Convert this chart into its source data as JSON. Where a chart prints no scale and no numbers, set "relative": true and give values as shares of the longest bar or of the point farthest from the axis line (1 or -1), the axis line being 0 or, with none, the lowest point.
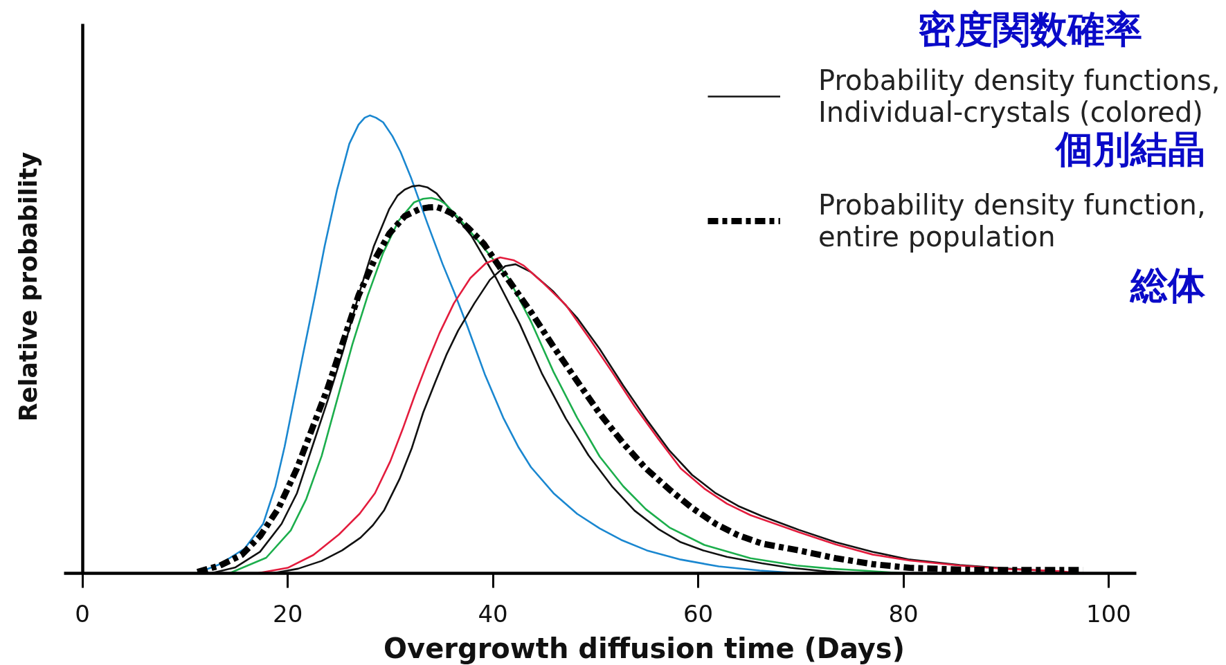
{
  "chart_data": {
    "type": "line",
    "relative": true,
    "xlabel": "Overgrowth diffusion time (Days)",
    "ylabel": "Relative probability",
    "xlim": [
      -1.8,
      102.7
    ],
    "xticks": [
      0,
      20,
      40,
      60,
      80,
      100
    ],
    "legend": "top right",
    "annotations": [
      "密度関数確率",
      "個別結晶",
      "総体"
    ],
    "series": [
      {
        "color": "#1a87d0",
        "line_style": "solid",
        "x": [
          11.1,
          13.4,
          15.8,
          17.6,
          18.8,
          19.7,
          20.6,
          21.5,
          22.6,
          23.6,
          24.8,
          26.0,
          26.9,
          27.5,
          28.0,
          28.6,
          29.3,
          30.2,
          31.0,
          32.0,
          33.6,
          35.1,
          36.2,
          37.5,
          39.2,
          41.0,
          42.5,
          43.7,
          45.9,
          48.2,
          50.4,
          52.5,
          55.0,
          58.3,
          62.0,
          66.0,
          70.0
        ],
        "values": [
          0.0,
          0.02,
          0.054,
          0.108,
          0.19,
          0.277,
          0.378,
          0.479,
          0.6,
          0.715,
          0.837,
          0.938,
          0.98,
          0.995,
          1.0,
          0.995,
          0.985,
          0.955,
          0.92,
          0.865,
          0.765,
          0.675,
          0.615,
          0.54,
          0.435,
          0.34,
          0.275,
          0.232,
          0.175,
          0.13,
          0.098,
          0.073,
          0.05,
          0.03,
          0.015,
          0.006,
          0.0
        ]
      },
      {
        "name": "Probability density functions,\nIndividual-crystals (colored)",
        "color": "#111111",
        "line_style": "solid",
        "x": [
          12.5,
          14.9,
          17.3,
          19.4,
          20.9,
          22.4,
          23.9,
          25.4,
          26.9,
          28.4,
          29.9,
          30.7,
          31.4,
          32.1,
          32.8,
          33.6,
          34.5,
          36.0,
          37.9,
          40.3,
          42.6,
          44.8,
          47.1,
          49.3,
          51.6,
          53.8,
          56.1,
          58.3,
          60.5,
          62.8,
          66.2,
          69.0,
          72.5,
          76.0
        ],
        "values": [
          0.0,
          0.013,
          0.047,
          0.108,
          0.175,
          0.277,
          0.378,
          0.486,
          0.607,
          0.715,
          0.796,
          0.825,
          0.838,
          0.845,
          0.847,
          0.843,
          0.83,
          0.79,
          0.737,
          0.645,
          0.545,
          0.435,
          0.338,
          0.258,
          0.19,
          0.137,
          0.097,
          0.068,
          0.05,
          0.036,
          0.022,
          0.012,
          0.004,
          0.0
        ]
      },
      {
        "color": "#1cae4c",
        "line_style": "solid",
        "x": [
          14.3,
          17.9,
          20.3,
          21.8,
          23.3,
          24.8,
          26.3,
          27.8,
          29.3,
          30.8,
          32.3,
          33.2,
          34.0,
          34.8,
          35.4,
          36.9,
          38.6,
          41.5,
          43.7,
          45.9,
          48.2,
          50.4,
          52.7,
          54.9,
          57.2,
          60.6,
          65.1,
          69.6,
          73.0,
          76.0,
          80.0
        ],
        "values": [
          0.0,
          0.034,
          0.094,
          0.162,
          0.256,
          0.378,
          0.5,
          0.607,
          0.7,
          0.77,
          0.81,
          0.818,
          0.82,
          0.815,
          0.806,
          0.77,
          0.725,
          0.645,
          0.55,
          0.44,
          0.34,
          0.255,
          0.19,
          0.14,
          0.1,
          0.062,
          0.033,
          0.017,
          0.01,
          0.006,
          0.0
        ]
      },
      {
        "color": "#111111",
        "line_style": "solid",
        "x": [
          18.5,
          21.0,
          23.3,
          25.3,
          27.1,
          28.3,
          29.4,
          30.9,
          32.1,
          33.2,
          34.4,
          35.5,
          36.6,
          38.2,
          39.7,
          41.2,
          42.2,
          43.7,
          45.9,
          48.2,
          50.4,
          52.7,
          54.9,
          57.2,
          59.4,
          61.7,
          63.9,
          66.2,
          69.8,
          73.4,
          77.0,
          80.6,
          85.5,
          90.3,
          95.0
        ],
        "values": [
          0.0,
          0.01,
          0.027,
          0.05,
          0.078,
          0.105,
          0.138,
          0.206,
          0.274,
          0.351,
          0.419,
          0.479,
          0.53,
          0.59,
          0.641,
          0.671,
          0.675,
          0.658,
          0.615,
          0.558,
          0.49,
          0.41,
          0.338,
          0.268,
          0.215,
          0.175,
          0.147,
          0.125,
          0.095,
          0.068,
          0.047,
          0.03,
          0.018,
          0.01,
          0.004
        ]
      },
      {
        "color": "#e31c3d",
        "line_style": "solid",
        "x": [
          17.0,
          20.0,
          22.5,
          25.0,
          27.0,
          28.5,
          30.0,
          31.2,
          32.4,
          33.6,
          34.8,
          36.2,
          37.8,
          39.3,
          40.7,
          42.0,
          43.0,
          44.8,
          47.1,
          49.3,
          51.6,
          53.8,
          56.1,
          58.3,
          60.6,
          62.8,
          65.1,
          69.8,
          73.4,
          77.0,
          80.6,
          85.5,
          90.3,
          95.1,
          97.5
        ],
        "values": [
          0.0,
          0.012,
          0.04,
          0.085,
          0.13,
          0.175,
          0.245,
          0.315,
          0.39,
          0.46,
          0.525,
          0.59,
          0.645,
          0.677,
          0.69,
          0.684,
          0.672,
          0.636,
          0.586,
          0.516,
          0.44,
          0.365,
          0.294,
          0.229,
          0.185,
          0.152,
          0.127,
          0.09,
          0.063,
          0.041,
          0.028,
          0.017,
          0.009,
          0.005,
          0.0
        ]
      },
      {
        "name": "Probability density function,\nentire population",
        "color": "#000000",
        "line_style": "dashed",
        "x": [
          11.2,
          13.4,
          15.5,
          17.3,
          19.1,
          20.9,
          22.4,
          23.9,
          25.4,
          26.9,
          28.4,
          29.9,
          31.4,
          32.9,
          33.7,
          34.5,
          35.2,
          36.0,
          37.5,
          39.1,
          41.5,
          43.7,
          45.9,
          48.2,
          50.4,
          52.7,
          54.9,
          57.2,
          59.4,
          61.7,
          63.9,
          66.2,
          69.8,
          73.4,
          77.0,
          80.6,
          85.5,
          90.3,
          97.5
        ],
        "values": [
          0.003,
          0.017,
          0.04,
          0.081,
          0.142,
          0.229,
          0.317,
          0.405,
          0.506,
          0.607,
          0.682,
          0.742,
          0.78,
          0.796,
          0.799,
          0.8,
          0.795,
          0.786,
          0.756,
          0.72,
          0.641,
          0.571,
          0.495,
          0.42,
          0.349,
          0.284,
          0.229,
          0.183,
          0.143,
          0.108,
          0.083,
          0.065,
          0.05,
          0.033,
          0.02,
          0.012,
          0.008,
          0.007,
          0.007
        ]
      }
    ]
  }
}
